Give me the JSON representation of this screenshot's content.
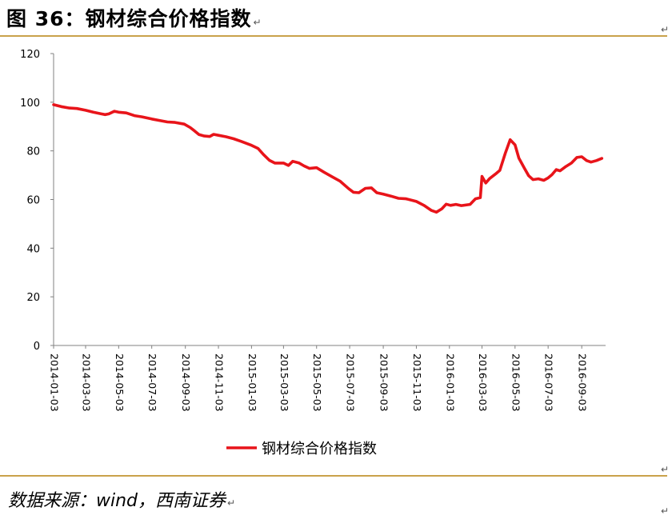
{
  "figure": {
    "title": "图 36：钢材综合价格指数",
    "source": "数据来源：wind，西南证券",
    "paragraph_mark": "↵"
  },
  "colors": {
    "line": "#e8141a",
    "rule": "#c9a24b",
    "axis": "#808080"
  },
  "chart_data": {
    "type": "line",
    "title": "",
    "xlabel": "",
    "ylabel": "",
    "ylim": [
      0,
      120
    ],
    "yticks": [
      0,
      20,
      40,
      60,
      80,
      100,
      120
    ],
    "xticks": [
      "2014-01-03",
      "2014-03-03",
      "2014-05-03",
      "2014-07-03",
      "2014-09-03",
      "2014-11-03",
      "2015-01-03",
      "2015-03-03",
      "2015-05-03",
      "2015-07-03",
      "2015-09-03",
      "2015-11-03",
      "2016-01-03",
      "2016-03-03",
      "2016-05-03",
      "2016-07-03",
      "2016-09-03"
    ],
    "grid": false,
    "legend": "bottom",
    "series": [
      {
        "name": "钢材综合价格指数",
        "points": [
          [
            "2014-01-03",
            99.0
          ],
          [
            "2014-01-17",
            98.2
          ],
          [
            "2014-02-01",
            97.6
          ],
          [
            "2014-02-15",
            97.4
          ],
          [
            "2014-03-03",
            96.7
          ],
          [
            "2014-03-17",
            95.9
          ],
          [
            "2014-04-01",
            95.2
          ],
          [
            "2014-04-08",
            94.9
          ],
          [
            "2014-04-15",
            95.2
          ],
          [
            "2014-04-25",
            96.3
          ],
          [
            "2014-05-03",
            95.9
          ],
          [
            "2014-05-17",
            95.6
          ],
          [
            "2014-06-01",
            94.5
          ],
          [
            "2014-06-15",
            94.0
          ],
          [
            "2014-07-03",
            93.1
          ],
          [
            "2014-07-17",
            92.5
          ],
          [
            "2014-08-01",
            91.9
          ],
          [
            "2014-08-15",
            91.7
          ],
          [
            "2014-09-01",
            91.0
          ],
          [
            "2014-09-12",
            89.6
          ],
          [
            "2014-09-20",
            88.2
          ],
          [
            "2014-09-28",
            86.7
          ],
          [
            "2014-10-08",
            86.1
          ],
          [
            "2014-10-18",
            85.9
          ],
          [
            "2014-10-25",
            86.8
          ],
          [
            "2014-11-03",
            86.4
          ],
          [
            "2014-11-17",
            85.8
          ],
          [
            "2014-12-01",
            85.0
          ],
          [
            "2014-12-15",
            83.9
          ],
          [
            "2015-01-03",
            82.3
          ],
          [
            "2015-01-15",
            81.0
          ],
          [
            "2015-01-25",
            78.5
          ],
          [
            "2015-02-05",
            76.1
          ],
          [
            "2015-02-15",
            75.0
          ],
          [
            "2015-03-03",
            75.0
          ],
          [
            "2015-03-12",
            74.0
          ],
          [
            "2015-03-20",
            75.7
          ],
          [
            "2015-04-01",
            75.0
          ],
          [
            "2015-04-10",
            73.8
          ],
          [
            "2015-04-20",
            72.8
          ],
          [
            "2015-05-03",
            73.1
          ],
          [
            "2015-05-17",
            71.2
          ],
          [
            "2015-06-01",
            69.3
          ],
          [
            "2015-06-15",
            67.6
          ],
          [
            "2015-07-01",
            64.5
          ],
          [
            "2015-07-10",
            63.0
          ],
          [
            "2015-07-20",
            62.8
          ],
          [
            "2015-08-01",
            64.6
          ],
          [
            "2015-08-12",
            64.8
          ],
          [
            "2015-08-22",
            62.8
          ],
          [
            "2015-09-03",
            62.2
          ],
          [
            "2015-09-17",
            61.4
          ],
          [
            "2015-10-01",
            60.5
          ],
          [
            "2015-10-15",
            60.3
          ],
          [
            "2015-11-03",
            59.2
          ],
          [
            "2015-11-17",
            57.6
          ],
          [
            "2015-12-01",
            55.5
          ],
          [
            "2015-12-10",
            54.8
          ],
          [
            "2015-12-20",
            56.2
          ],
          [
            "2015-12-28",
            58.1
          ],
          [
            "2016-01-05",
            57.6
          ],
          [
            "2016-01-15",
            58.0
          ],
          [
            "2016-01-25",
            57.5
          ],
          [
            "2016-02-10",
            58.0
          ],
          [
            "2016-02-20",
            60.3
          ],
          [
            "2016-02-29",
            60.8
          ],
          [
            "2016-03-03",
            69.5
          ],
          [
            "2016-03-10",
            66.8
          ],
          [
            "2016-03-17",
            68.6
          ],
          [
            "2016-03-28",
            70.5
          ],
          [
            "2016-04-05",
            72.0
          ],
          [
            "2016-04-15",
            79.0
          ],
          [
            "2016-04-24",
            84.6
          ],
          [
            "2016-05-03",
            82.5
          ],
          [
            "2016-05-10",
            77.0
          ],
          [
            "2016-05-20",
            73.0
          ],
          [
            "2016-05-28",
            69.8
          ],
          [
            "2016-06-05",
            68.2
          ],
          [
            "2016-06-15",
            68.5
          ],
          [
            "2016-06-25",
            67.9
          ],
          [
            "2016-07-03",
            68.9
          ],
          [
            "2016-07-10",
            70.2
          ],
          [
            "2016-07-18",
            72.3
          ],
          [
            "2016-07-25",
            71.8
          ],
          [
            "2016-08-05",
            73.6
          ],
          [
            "2016-08-15",
            75.0
          ],
          [
            "2016-08-25",
            77.3
          ],
          [
            "2016-09-03",
            77.6
          ],
          [
            "2016-09-12",
            76.0
          ],
          [
            "2016-09-20",
            75.4
          ],
          [
            "2016-09-30",
            76.0
          ],
          [
            "2016-10-10",
            76.9
          ]
        ]
      }
    ]
  }
}
